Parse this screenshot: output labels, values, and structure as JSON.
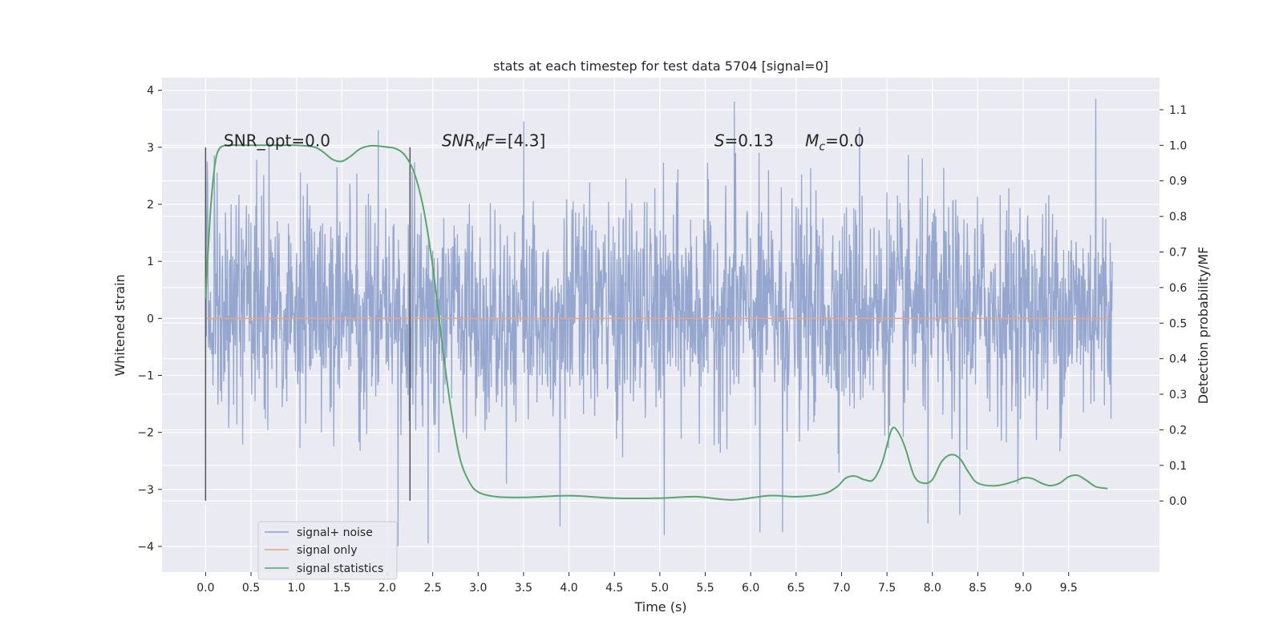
{
  "chart_data": {
    "type": "line",
    "title": "stats at each timestep for test data 5704 [signal=0]",
    "xlabel": "Time (s)",
    "ylabel_left": "Whitened strain",
    "ylabel_right": "Detection probability/MF",
    "xlim": [
      -0.48,
      10.5
    ],
    "ylim_left": [
      -4.45,
      4.22
    ],
    "ylim_right": [
      -0.2,
      1.19
    ],
    "x_ticks": [
      0.0,
      0.5,
      1.0,
      1.5,
      2.0,
      2.5,
      3.0,
      3.5,
      4.0,
      4.5,
      5.0,
      5.5,
      6.0,
      6.5,
      7.0,
      7.5,
      8.0,
      8.5,
      9.0,
      9.5
    ],
    "x_tick_labels": [
      "0.0",
      "0.5",
      "1.0",
      "1.5",
      "2.0",
      "2.5",
      "3.0",
      "3.5",
      "4.0",
      "4.5",
      "5.0",
      "5.5",
      "6.0",
      "6.5",
      "7.0",
      "7.5",
      "8.0",
      "8.5",
      "9.0",
      "9.5"
    ],
    "y_left_ticks": [
      -4,
      -3,
      -2,
      -1,
      0,
      1,
      2,
      3,
      4
    ],
    "y_left_tick_labels": [
      "−4",
      "−3",
      "−2",
      "−1",
      "0",
      "1",
      "2",
      "3",
      "4"
    ],
    "y_right_ticks": [
      0.0,
      0.1,
      0.2,
      0.3,
      0.4,
      0.5,
      0.6,
      0.7,
      0.8,
      0.9,
      1.0,
      1.1
    ],
    "y_right_tick_labels": [
      "0.0",
      "0.1",
      "0.2",
      "0.3",
      "0.4",
      "0.5",
      "0.6",
      "0.7",
      "0.8",
      "0.9",
      "1.0",
      "1.1"
    ],
    "grid": true,
    "legend_position": "lower-left",
    "annotations": {
      "snr_opt": "SNR_opt=0.0",
      "snr_mf_main": "SNR",
      "snr_mf_sub": "M",
      "snr_mf_rest": "F=[4.3]",
      "s_italic": "S",
      "s_rest": "=0.13",
      "mc_main": "M",
      "mc_sub": "c",
      "mc_rest": "=0.0"
    },
    "annotation_positions_data": {
      "snr_opt": [
        0.2,
        3.02
      ],
      "snr_mf": [
        2.6,
        3.02
      ],
      "s": [
        5.6,
        3.02
      ],
      "mc": [
        6.6,
        3.02
      ]
    },
    "vertical_lines": [
      {
        "x": 0.0,
        "ymin": -3.2,
        "ymax": 3.0
      },
      {
        "x": 2.25,
        "ymin": -3.2,
        "ymax": 3.0
      }
    ],
    "series": [
      {
        "name": "signal+ noise",
        "axis": "left",
        "color": "#8da0cb",
        "description_range": [
          0.0,
          9.98
        ],
        "typical_envelope": [
          -2.0,
          2.5
        ],
        "extremes": [
          {
            "x": 0.02,
            "y": 2.75
          },
          {
            "x": 0.7,
            "y": 3.1
          },
          {
            "x": 1.9,
            "y": 3.3
          },
          {
            "x": 2.12,
            "y": -4.0
          },
          {
            "x": 2.45,
            "y": -3.95
          },
          {
            "x": 3.5,
            "y": 3.45
          },
          {
            "x": 3.9,
            "y": -3.65
          },
          {
            "x": 5.05,
            "y": -3.8
          },
          {
            "x": 5.82,
            "y": 3.8
          },
          {
            "x": 6.1,
            "y": -3.75
          },
          {
            "x": 6.35,
            "y": -3.75
          },
          {
            "x": 7.2,
            "y": 3.35
          },
          {
            "x": 7.95,
            "y": -3.6
          },
          {
            "x": 8.3,
            "y": -3.45
          },
          {
            "x": 9.8,
            "y": 3.85
          }
        ]
      },
      {
        "name": "signal only",
        "axis": "left",
        "color": "#e4a58a",
        "x": [
          0.0,
          9.98
        ],
        "y": [
          0.0,
          0.0
        ]
      },
      {
        "name": "signal statistics",
        "axis": "right",
        "color": "#55a868",
        "x": [
          0.0,
          0.05,
          0.1,
          0.15,
          0.25,
          0.4,
          0.6,
          0.8,
          1.0,
          1.2,
          1.3,
          1.4,
          1.5,
          1.6,
          1.7,
          1.8,
          1.9,
          2.0,
          2.1,
          2.2,
          2.3,
          2.4,
          2.5,
          2.6,
          2.7,
          2.8,
          2.9,
          3.0,
          3.2,
          3.5,
          4.0,
          4.5,
          5.0,
          5.4,
          5.8,
          6.2,
          6.5,
          6.8,
          6.95,
          7.05,
          7.15,
          7.25,
          7.35,
          7.45,
          7.55,
          7.62,
          7.7,
          7.8,
          7.9,
          8.0,
          8.1,
          8.2,
          8.3,
          8.4,
          8.5,
          8.7,
          8.9,
          9.0,
          9.1,
          9.2,
          9.3,
          9.4,
          9.5,
          9.6,
          9.7,
          9.8,
          9.93
        ],
        "y": [
          0.57,
          0.8,
          0.94,
          0.99,
          1.0,
          1.0,
          1.0,
          1.0,
          1.0,
          0.995,
          0.98,
          0.96,
          0.955,
          0.97,
          0.99,
          0.998,
          0.998,
          0.995,
          0.99,
          0.97,
          0.92,
          0.82,
          0.66,
          0.45,
          0.26,
          0.12,
          0.055,
          0.025,
          0.012,
          0.01,
          0.015,
          0.008,
          0.008,
          0.012,
          0.003,
          0.015,
          0.012,
          0.02,
          0.04,
          0.065,
          0.07,
          0.06,
          0.06,
          0.11,
          0.2,
          0.195,
          0.15,
          0.07,
          0.05,
          0.06,
          0.11,
          0.13,
          0.12,
          0.08,
          0.05,
          0.043,
          0.055,
          0.065,
          0.063,
          0.05,
          0.043,
          0.05,
          0.068,
          0.072,
          0.057,
          0.04,
          0.035
        ]
      }
    ]
  }
}
